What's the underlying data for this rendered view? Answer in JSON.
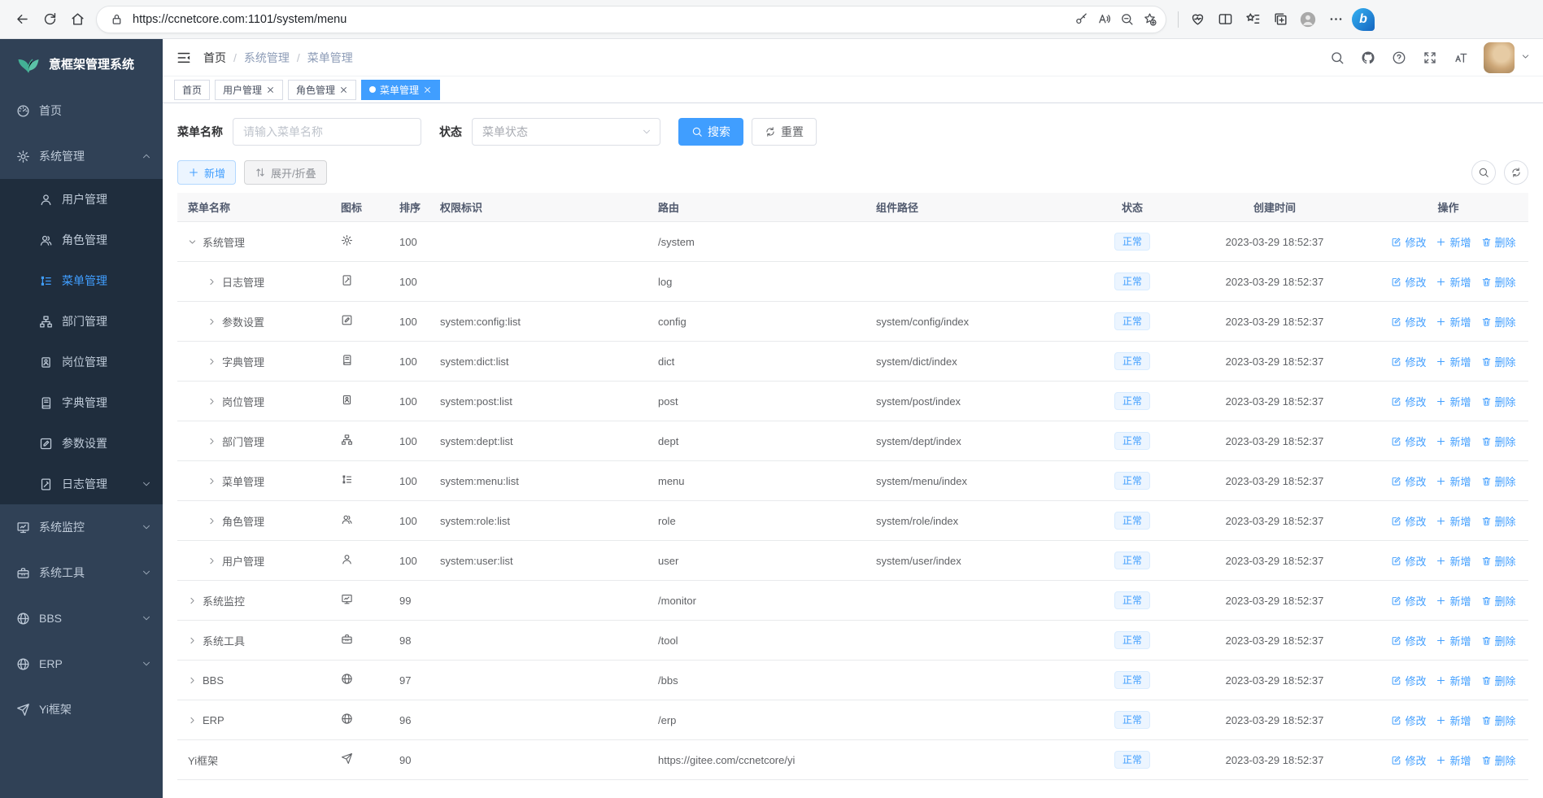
{
  "browser": {
    "url": "https://ccnetcore.com:1101/system/menu"
  },
  "colors": {
    "accent": "#409eff",
    "sidebar_bg": "#304156",
    "submenu_bg": "#1f2d3d",
    "status_badge_bg": "#ecf5ff",
    "status_badge_text": "#409eff",
    "logo_leaf": "#43b095"
  },
  "sidebar": {
    "logo_title": "意框架管理系统",
    "items": [
      {
        "key": "home",
        "label": "首页",
        "icon": "dashboard",
        "chevron": null,
        "active": false
      },
      {
        "key": "system",
        "label": "系统管理",
        "icon": "gear",
        "chevron": "up",
        "active": false,
        "children": [
          {
            "key": "user",
            "label": "用户管理",
            "icon": "user",
            "chevron": null,
            "active": false
          },
          {
            "key": "role",
            "label": "角色管理",
            "icon": "users",
            "chevron": null,
            "active": false
          },
          {
            "key": "menu",
            "label": "菜单管理",
            "icon": "menu-list",
            "chevron": null,
            "active": true
          },
          {
            "key": "dept",
            "label": "部门管理",
            "icon": "tree",
            "chevron": null,
            "active": false
          },
          {
            "key": "post",
            "label": "岗位管理",
            "icon": "badge",
            "chevron": null,
            "active": false
          },
          {
            "key": "dict",
            "label": "字典管理",
            "icon": "book",
            "chevron": null,
            "active": false
          },
          {
            "key": "config",
            "label": "参数设置",
            "icon": "edit",
            "chevron": null,
            "active": false
          },
          {
            "key": "log",
            "label": "日志管理",
            "icon": "log",
            "chevron": "down",
            "active": false
          }
        ]
      },
      {
        "key": "monitor",
        "label": "系统监控",
        "icon": "monitor",
        "chevron": "down",
        "active": false
      },
      {
        "key": "tool",
        "label": "系统工具",
        "icon": "toolbox",
        "chevron": "down",
        "active": false
      },
      {
        "key": "bbs",
        "label": "BBS",
        "icon": "globe",
        "chevron": "down",
        "active": false
      },
      {
        "key": "erp",
        "label": "ERP",
        "icon": "globe",
        "chevron": "down",
        "active": false
      },
      {
        "key": "yi",
        "label": "Yi框架",
        "icon": "plane",
        "chevron": null,
        "active": false
      }
    ]
  },
  "header": {
    "breadcrumb": [
      "首页",
      "系统管理",
      "菜单管理"
    ]
  },
  "tabs": [
    {
      "key": "home",
      "label": "首页",
      "closable": false,
      "active": false
    },
    {
      "key": "user",
      "label": "用户管理",
      "closable": true,
      "active": false
    },
    {
      "key": "role",
      "label": "角色管理",
      "closable": true,
      "active": false
    },
    {
      "key": "menu",
      "label": "菜单管理",
      "closable": true,
      "active": true
    }
  ],
  "filters": {
    "name_label": "菜单名称",
    "name_placeholder": "请输入菜单名称",
    "status_label": "状态",
    "status_placeholder": "菜单状态",
    "search_label": "搜索",
    "reset_label": "重置"
  },
  "toolbar": {
    "add_label": "新增",
    "expand_label": "展开/折叠"
  },
  "table": {
    "columns": [
      "菜单名称",
      "图标",
      "排序",
      "权限标识",
      "路由",
      "组件路径",
      "状态",
      "创建时间",
      "操作"
    ],
    "op_labels": {
      "edit": "修改",
      "add": "新增",
      "delete": "删除"
    },
    "rows": [
      {
        "name": "系统管理",
        "level": 0,
        "arrow": "down",
        "icon": "gear",
        "sort": "100",
        "perm": "",
        "route": "/system",
        "component": "",
        "status": "正常",
        "created": "2023-03-29 18:52:37"
      },
      {
        "name": "日志管理",
        "level": 1,
        "arrow": "right",
        "icon": "log",
        "sort": "100",
        "perm": "",
        "route": "log",
        "component": "",
        "status": "正常",
        "created": "2023-03-29 18:52:37"
      },
      {
        "name": "参数设置",
        "level": 1,
        "arrow": "right",
        "icon": "edit",
        "sort": "100",
        "perm": "system:config:list",
        "route": "config",
        "component": "system/config/index",
        "status": "正常",
        "created": "2023-03-29 18:52:37"
      },
      {
        "name": "字典管理",
        "level": 1,
        "arrow": "right",
        "icon": "book",
        "sort": "100",
        "perm": "system:dict:list",
        "route": "dict",
        "component": "system/dict/index",
        "status": "正常",
        "created": "2023-03-29 18:52:37"
      },
      {
        "name": "岗位管理",
        "level": 1,
        "arrow": "right",
        "icon": "badge",
        "sort": "100",
        "perm": "system:post:list",
        "route": "post",
        "component": "system/post/index",
        "status": "正常",
        "created": "2023-03-29 18:52:37"
      },
      {
        "name": "部门管理",
        "level": 1,
        "arrow": "right",
        "icon": "tree",
        "sort": "100",
        "perm": "system:dept:list",
        "route": "dept",
        "component": "system/dept/index",
        "status": "正常",
        "created": "2023-03-29 18:52:37"
      },
      {
        "name": "菜单管理",
        "level": 1,
        "arrow": "right",
        "icon": "menu-list",
        "sort": "100",
        "perm": "system:menu:list",
        "route": "menu",
        "component": "system/menu/index",
        "status": "正常",
        "created": "2023-03-29 18:52:37"
      },
      {
        "name": "角色管理",
        "level": 1,
        "arrow": "right",
        "icon": "users",
        "sort": "100",
        "perm": "system:role:list",
        "route": "role",
        "component": "system/role/index",
        "status": "正常",
        "created": "2023-03-29 18:52:37"
      },
      {
        "name": "用户管理",
        "level": 1,
        "arrow": "right",
        "icon": "user",
        "sort": "100",
        "perm": "system:user:list",
        "route": "user",
        "component": "system/user/index",
        "status": "正常",
        "created": "2023-03-29 18:52:37"
      },
      {
        "name": "系统监控",
        "level": 0,
        "arrow": "right",
        "icon": "monitor",
        "sort": "99",
        "perm": "",
        "route": "/monitor",
        "component": "",
        "status": "正常",
        "created": "2023-03-29 18:52:37"
      },
      {
        "name": "系统工具",
        "level": 0,
        "arrow": "right",
        "icon": "toolbox",
        "sort": "98",
        "perm": "",
        "route": "/tool",
        "component": "",
        "status": "正常",
        "created": "2023-03-29 18:52:37"
      },
      {
        "name": "BBS",
        "level": 0,
        "arrow": "right",
        "icon": "globe",
        "sort": "97",
        "perm": "",
        "route": "/bbs",
        "component": "",
        "status": "正常",
        "created": "2023-03-29 18:52:37"
      },
      {
        "name": "ERP",
        "level": 0,
        "arrow": "right",
        "icon": "globe",
        "sort": "96",
        "perm": "",
        "route": "/erp",
        "component": "",
        "status": "正常",
        "created": "2023-03-29 18:52:37"
      },
      {
        "name": "Yi框架",
        "level": 0,
        "arrow": null,
        "icon": "plane",
        "sort": "90",
        "perm": "",
        "route": "https://gitee.com/ccnetcore/yi",
        "component": "",
        "status": "正常",
        "created": "2023-03-29 18:52:37"
      }
    ]
  }
}
